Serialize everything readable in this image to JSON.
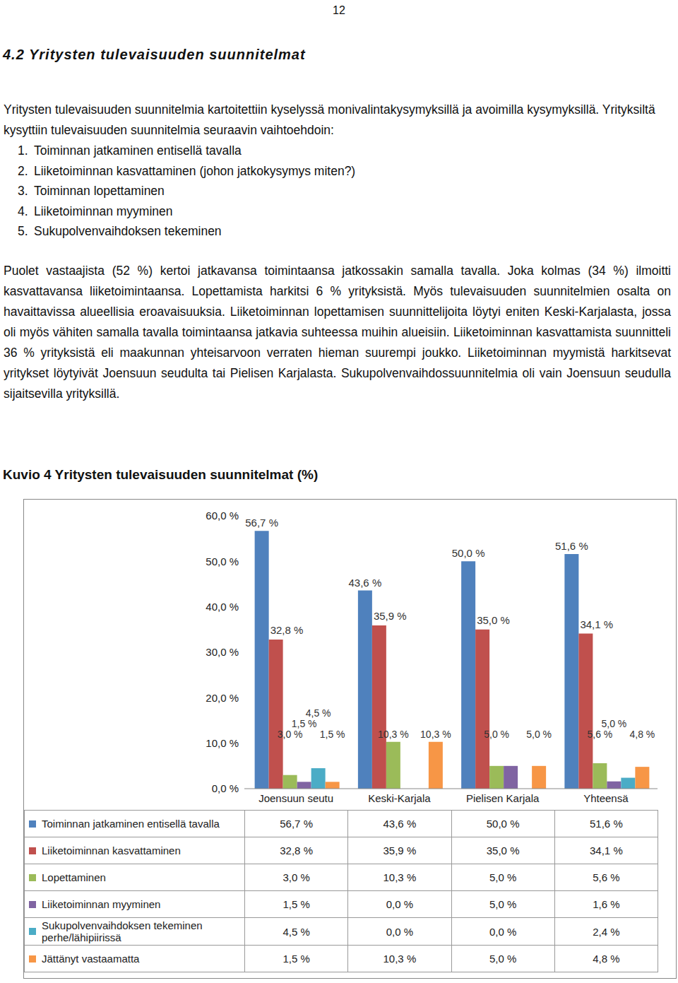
{
  "page_number": "12",
  "heading": "4.2 Yritysten tulevaisuuden suunnitelmat",
  "intro": "Yritysten tulevaisuuden suunnitelmia kartoitettiin kyselyssä monivalintakysymyksillä ja avoimilla kysymyksillä. Yrityksiltä kysyttiin tulevaisuuden suunnitelmia seuraavin vaihtoehdoin:",
  "list": [
    {
      "number": "1.",
      "text": "Toiminnan jatkaminen entisellä tavalla"
    },
    {
      "number": "2.",
      "text": "Liiketoiminnan kasvattaminen (johon jatkokysymys miten?)"
    },
    {
      "number": "3.",
      "text": "Toiminnan lopettaminen"
    },
    {
      "number": "4.",
      "text": "Liiketoiminnan myyminen"
    },
    {
      "number": "5.",
      "text": "Sukupolvenvaihdoksen tekeminen"
    }
  ],
  "body": "Puolet vastaajista (52 %) kertoi jatkavansa toimintaansa jatkossakin samalla tavalla. Joka kolmas (34 %) ilmoitti kasvattavansa liiketoimintaansa. Lopettamista harkitsi 6 % yrityksistä. Myös tulevaisuuden suunnitelmien osalta on havaittavissa alueellisia eroavaisuuksia. Liiketoiminnan lopettamisen suunnittelijoita löytyi eniten Keski-Karjalasta, jossa oli myös vähiten samalla tavalla toimintaansa jatkavia suhteessa muihin alueisiin. Liiketoiminnan kasvattamista suunnitteli 36 % yrityksistä eli maakunnan yhteisarvoon verraten hieman suurempi joukko. Liiketoiminnan myymistä harkitsevat yritykset löytyivät Joensuun seudulta tai Pielisen Karjalasta. Sukupolvenvaihdossuunnitelmia oli vain Joensuun seudulla sijaitsevilla yrityksillä.",
  "chart_data": {
    "type": "bar",
    "title": "Kuvio 4 Yritysten tulevaisuuden suunnitelmat (%)",
    "categories": [
      "Joensuun seutu",
      "Keski-Karjala",
      "Pielisen Karjala",
      "Yhteensä"
    ],
    "series": [
      {
        "name": "Toiminnan jatkaminen entisellä tavalla",
        "color": "#4f81bd",
        "values": [
          56.7,
          43.6,
          50.0,
          51.6
        ],
        "value_labels": [
          "56,7 %",
          "43,6 %",
          "50,0 %",
          "51,6 %"
        ]
      },
      {
        "name": "Liiketoiminnan kasvattaminen",
        "color": "#c0504d",
        "values": [
          32.8,
          35.9,
          35.0,
          34.1
        ],
        "value_labels": [
          "32,8 %",
          "35,9 %",
          "35,0 %",
          "34,1 %"
        ]
      },
      {
        "name": "Lopettaminen",
        "color": "#9bbb59",
        "values": [
          3.0,
          10.3,
          5.0,
          5.6
        ],
        "value_labels": [
          "3,0 %",
          "10,3 %",
          "5,0 %",
          "5,6 %"
        ]
      },
      {
        "name": "Liiketoiminnan myyminen",
        "color": "#8064a2",
        "values": [
          1.5,
          0.0,
          5.0,
          1.6
        ],
        "value_labels": [
          "1,5 %",
          "0,0 %",
          "5,0 %",
          "1,6 %"
        ]
      },
      {
        "name": "Sukupolvenvaihdoksen tekeminen perhe/lähipiirissä",
        "color": "#4bacc6",
        "values": [
          4.5,
          0.0,
          0.0,
          2.4
        ],
        "value_labels": [
          "4,5 %",
          "0,0 %",
          "0,0 %",
          "2,4 %"
        ]
      },
      {
        "name": "Jättänyt vastaamatta",
        "color": "#f79646",
        "values": [
          1.5,
          10.3,
          5.0,
          4.8
        ],
        "value_labels": [
          "1,5 %",
          "10,3 %",
          "5,0 %",
          "4,8 %"
        ]
      }
    ],
    "ylim": [
      0,
      60
    ],
    "yticks": [
      {
        "value": 0,
        "label": "0,0 %"
      },
      {
        "value": 10,
        "label": "10,0 %"
      },
      {
        "value": 20,
        "label": "20,0 %"
      },
      {
        "value": 30,
        "label": "30,0 %"
      },
      {
        "value": 40,
        "label": "40,0 %"
      },
      {
        "value": 50,
        "label": "50,0 %"
      },
      {
        "value": 60,
        "label": "60,0 %"
      }
    ],
    "grid": false,
    "data_labels": true
  }
}
